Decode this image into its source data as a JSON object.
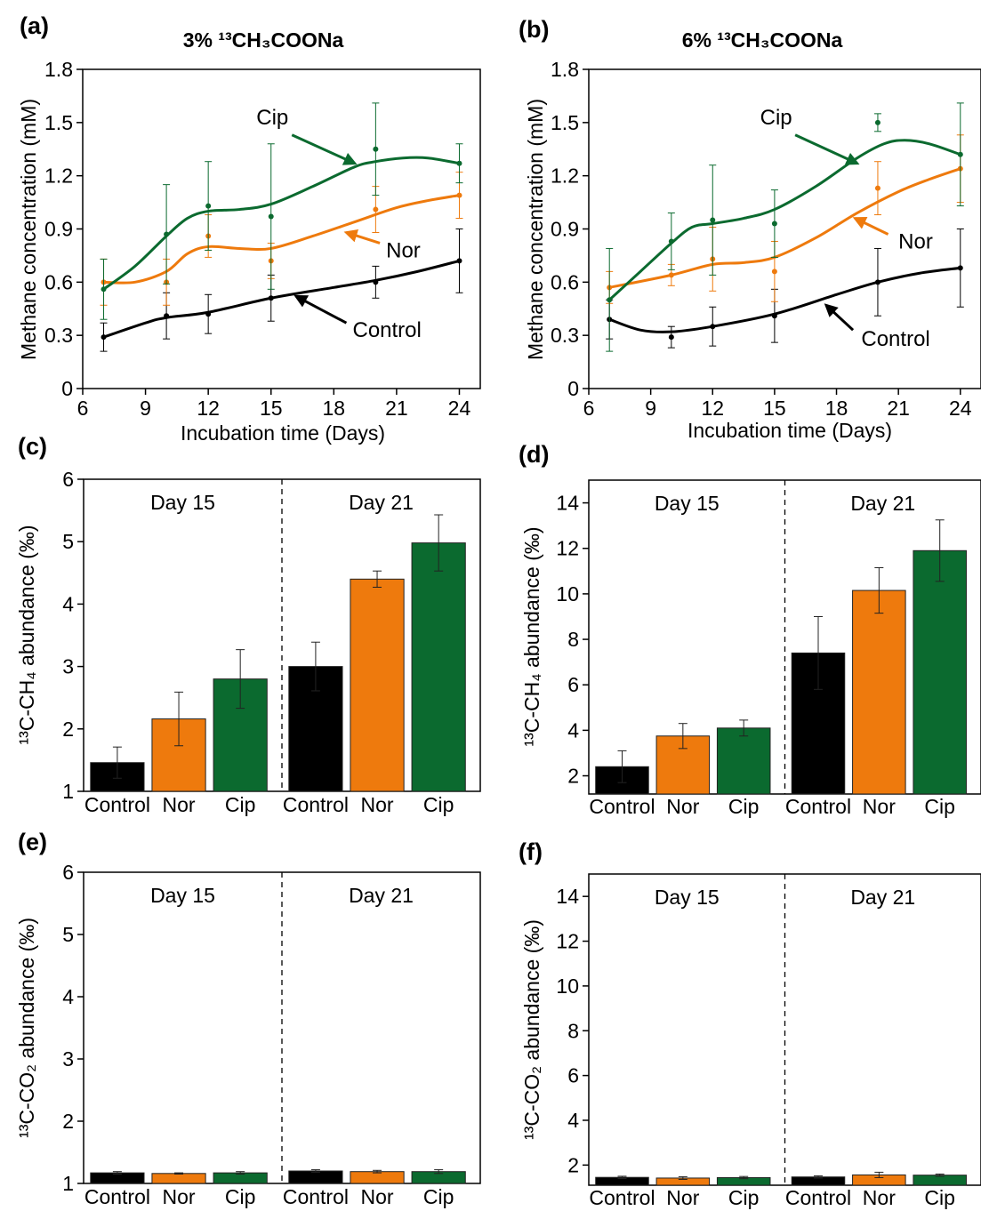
{
  "colors": {
    "control": "#000000",
    "nor": "#ee7a0d",
    "cip": "#0b6a2f"
  },
  "chart_data": [
    {
      "id": "a",
      "type": "line",
      "panel_label": "(a)",
      "title": "3% ¹³CH₃COONa",
      "xlabel": "Incubation time (Days)",
      "ylabel": "Methane concentration (mM)",
      "xlim": [
        6,
        25
      ],
      "ylim": [
        0,
        1.8
      ],
      "xticks": [
        6,
        9,
        12,
        15,
        18,
        21,
        24
      ],
      "yticks": [
        0,
        0.3,
        0.6,
        0.9,
        1.2,
        1.5,
        1.8
      ],
      "ytick_labels": [
        "0",
        "0.3",
        "0.6",
        "0.9",
        "1.2",
        "1.5",
        "1.8"
      ],
      "x": [
        7,
        10,
        12,
        15,
        20,
        24
      ],
      "series": [
        {
          "name": "Control",
          "key": "control",
          "values": [
            0.29,
            0.41,
            0.42,
            0.51,
            0.6,
            0.72
          ],
          "errors": [
            0.08,
            0.13,
            0.11,
            0.13,
            0.09,
            0.18
          ],
          "curve": [
            [
              7,
              0.29
            ],
            [
              9,
              0.37
            ],
            [
              10,
              0.4
            ],
            [
              12,
              0.43
            ],
            [
              15,
              0.51
            ],
            [
              18,
              0.57
            ],
            [
              20,
              0.61
            ],
            [
              22,
              0.66
            ],
            [
              24,
              0.72
            ]
          ]
        },
        {
          "name": "Nor",
          "key": "nor",
          "values": [
            0.6,
            0.6,
            0.86,
            0.72,
            1.01,
            1.09
          ],
          "errors": [
            0.13,
            0.13,
            0.12,
            0.1,
            0.13,
            0.13
          ],
          "curve": [
            [
              7,
              0.6
            ],
            [
              8.5,
              0.6
            ],
            [
              10,
              0.66
            ],
            [
              11,
              0.76
            ],
            [
              12,
              0.8
            ],
            [
              13.5,
              0.79
            ],
            [
              15,
              0.79
            ],
            [
              17,
              0.86
            ],
            [
              19,
              0.94
            ],
            [
              21,
              1.02
            ],
            [
              22.5,
              1.06
            ],
            [
              24,
              1.09
            ]
          ]
        },
        {
          "name": "Cip",
          "key": "cip",
          "values": [
            0.56,
            0.87,
            1.03,
            0.97,
            1.35,
            1.27
          ],
          "errors": [
            0.17,
            0.28,
            0.25,
            0.41,
            0.26,
            0.11
          ],
          "curve": [
            [
              7,
              0.56
            ],
            [
              8.5,
              0.69
            ],
            [
              10,
              0.86
            ],
            [
              11,
              0.96
            ],
            [
              12,
              1.0
            ],
            [
              13.5,
              1.01
            ],
            [
              15,
              1.04
            ],
            [
              17,
              1.14
            ],
            [
              19,
              1.25
            ],
            [
              20,
              1.28
            ],
            [
              21.3,
              1.3
            ],
            [
              22.5,
              1.3
            ],
            [
              24,
              1.27
            ]
          ]
        }
      ],
      "annotations": [
        {
          "text": "Cip",
          "key": "cip",
          "tx": 14.3,
          "ty": 1.49,
          "ax0": 16.0,
          "ay0": 1.43,
          "ax1": 19.0,
          "ay1": 1.27
        },
        {
          "text": "Nor",
          "key": "nor",
          "tx": 20.5,
          "ty": 0.74,
          "ax0": 20.2,
          "ay0": 0.82,
          "ax1": 18.6,
          "ay1": 0.88
        },
        {
          "text": "Control",
          "key": "control",
          "tx": 18.9,
          "ty": 0.29,
          "ax0": 18.6,
          "ay0": 0.37,
          "ax1": 16.2,
          "ay1": 0.52
        }
      ]
    },
    {
      "id": "b",
      "type": "line",
      "panel_label": "(b)",
      "title": "6% ¹³CH₃COONa",
      "xlabel": "Incubation time (Days)",
      "ylabel": "Methane concentration (mM)",
      "xlim": [
        6,
        25
      ],
      "ylim": [
        0,
        1.8
      ],
      "xticks": [
        6,
        9,
        12,
        15,
        18,
        21,
        24
      ],
      "yticks": [
        0,
        0.3,
        0.6,
        0.9,
        1.2,
        1.5,
        1.8
      ],
      "ytick_labels": [
        "0",
        "0.3",
        "0.6",
        "0.9",
        "1.2",
        "1.5",
        "1.8"
      ],
      "x": [
        7,
        10,
        12,
        15,
        20,
        24
      ],
      "series": [
        {
          "name": "Control",
          "key": "control",
          "values": [
            0.39,
            0.29,
            0.35,
            0.41,
            0.6,
            0.68
          ],
          "errors": [
            0.11,
            0.06,
            0.11,
            0.15,
            0.19,
            0.22
          ],
          "curve": [
            [
              7,
              0.39
            ],
            [
              8.5,
              0.33
            ],
            [
              10,
              0.32
            ],
            [
              12,
              0.35
            ],
            [
              15,
              0.42
            ],
            [
              18,
              0.53
            ],
            [
              20,
              0.6
            ],
            [
              22,
              0.65
            ],
            [
              24,
              0.68
            ]
          ]
        },
        {
          "name": "Nor",
          "key": "nor",
          "values": [
            0.57,
            0.64,
            0.73,
            0.66,
            1.13,
            1.24
          ],
          "errors": [
            0.09,
            0.06,
            0.18,
            0.17,
            0.15,
            0.19
          ],
          "curve": [
            [
              7,
              0.57
            ],
            [
              10,
              0.64
            ],
            [
              12,
              0.7
            ],
            [
              13.5,
              0.71
            ],
            [
              15,
              0.74
            ],
            [
              17,
              0.85
            ],
            [
              19,
              0.99
            ],
            [
              21,
              1.11
            ],
            [
              22.5,
              1.18
            ],
            [
              24,
              1.24
            ]
          ]
        },
        {
          "name": "Cip",
          "key": "cip",
          "values": [
            0.5,
            0.83,
            0.95,
            0.93,
            1.5,
            1.32
          ],
          "errors": [
            0.29,
            0.16,
            0.31,
            0.19,
            0.05,
            0.29
          ],
          "curve": [
            [
              7,
              0.5
            ],
            [
              8.5,
              0.66
            ],
            [
              10,
              0.82
            ],
            [
              11,
              0.91
            ],
            [
              12,
              0.93
            ],
            [
              13.5,
              0.96
            ],
            [
              15,
              1.01
            ],
            [
              17,
              1.14
            ],
            [
              19,
              1.3
            ],
            [
              20.3,
              1.38
            ],
            [
              21.3,
              1.4
            ],
            [
              22.5,
              1.38
            ],
            [
              24,
              1.32
            ]
          ]
        }
      ],
      "annotations": [
        {
          "text": "Cip",
          "key": "cip",
          "tx": 14.3,
          "ty": 1.49,
          "ax0": 16.0,
          "ay0": 1.43,
          "ax1": 19.0,
          "ay1": 1.27
        },
        {
          "text": "Nor",
          "key": "nor",
          "tx": 21.0,
          "ty": 0.79,
          "ax0": 20.5,
          "ay0": 0.87,
          "ax1": 18.9,
          "ay1": 0.96
        },
        {
          "text": "Control",
          "key": "control",
          "tx": 19.2,
          "ty": 0.24,
          "ax0": 18.8,
          "ay0": 0.33,
          "ax1": 17.5,
          "ay1": 0.47
        }
      ]
    },
    {
      "id": "c",
      "type": "bar",
      "panel_label": "(c)",
      "ylabel": "¹³C-CH₄ abundance (‰)",
      "ylim": [
        1,
        6
      ],
      "yticks": [
        1,
        2,
        3,
        4,
        5,
        6
      ],
      "groups": [
        "Day 15",
        "Day 21"
      ],
      "categories": [
        "Control",
        "Nor",
        "Cip"
      ],
      "series": [
        {
          "name": "Day 15",
          "values": [
            1.46,
            2.16,
            2.8
          ],
          "errors": [
            0.25,
            0.43,
            0.47
          ]
        },
        {
          "name": "Day 21",
          "values": [
            3.0,
            4.4,
            4.98
          ],
          "errors": [
            0.39,
            0.13,
            0.45
          ]
        }
      ]
    },
    {
      "id": "d",
      "type": "bar",
      "panel_label": "(d)",
      "ylabel": "¹³C-CH₄ abundance (‰)",
      "ylim": [
        1.2,
        15
      ],
      "yticks": [
        2,
        4,
        6,
        8,
        10,
        12,
        14
      ],
      "groups": [
        "Day 15",
        "Day 21"
      ],
      "categories": [
        "Control",
        "Nor",
        "Cip"
      ],
      "series": [
        {
          "name": "Day 15",
          "values": [
            2.4,
            3.75,
            4.1
          ],
          "errors": [
            0.7,
            0.55,
            0.35
          ]
        },
        {
          "name": "Day 21",
          "values": [
            7.4,
            10.15,
            11.9
          ],
          "errors": [
            1.6,
            1.0,
            1.35
          ]
        }
      ]
    },
    {
      "id": "e",
      "type": "bar",
      "panel_label": "(e)",
      "ylabel": "¹³C-CO₂ abundance (‰)",
      "ylim": [
        1,
        6
      ],
      "yticks": [
        1,
        2,
        3,
        4,
        5,
        6
      ],
      "groups": [
        "Day 15",
        "Day 21"
      ],
      "categories": [
        "Control",
        "Nor",
        "Cip"
      ],
      "series": [
        {
          "name": "Day 15",
          "values": [
            1.17,
            1.16,
            1.17
          ],
          "errors": [
            0.02,
            0.01,
            0.02
          ]
        },
        {
          "name": "Day 21",
          "values": [
            1.2,
            1.19,
            1.19
          ],
          "errors": [
            0.02,
            0.02,
            0.03
          ]
        }
      ]
    },
    {
      "id": "f",
      "type": "bar",
      "panel_label": "(f)",
      "ylabel": "¹³C-CO₂ abundance (‰)",
      "ylim": [
        1.1,
        15
      ],
      "yticks": [
        2,
        4,
        6,
        8,
        10,
        12,
        14
      ],
      "groups": [
        "Day 15",
        "Day 21"
      ],
      "categories": [
        "Control",
        "Nor",
        "Cip"
      ],
      "series": [
        {
          "name": "Day 15",
          "values": [
            1.45,
            1.42,
            1.44
          ],
          "errors": [
            0.05,
            0.06,
            0.05
          ]
        },
        {
          "name": "Day 21",
          "values": [
            1.47,
            1.56,
            1.55
          ],
          "errors": [
            0.05,
            0.12,
            0.05
          ]
        }
      ]
    }
  ]
}
